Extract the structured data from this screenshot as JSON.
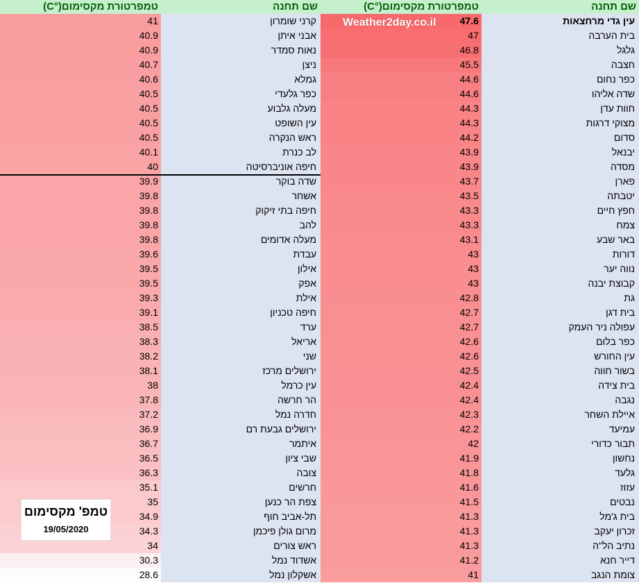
{
  "headers": {
    "right_station": "שם תחנה",
    "right_temp": "טמפרטורת מקסימום(°C)",
    "left_station": "שם תחנה",
    "left_temp": "טמפרטורת מקסימום(°C)"
  },
  "watermark": "Weather2day.co.il",
  "caption": {
    "title": "טמפ' מקסימום",
    "date": "19/05/2020"
  },
  "colors": {
    "header_bg": "#c6efce",
    "header_text": "#006100",
    "station_bg": "#dce3f1",
    "heat_high": "#f8696b",
    "heat_low": "#fcfcff"
  },
  "table_right": [
    {
      "station": "עין גדי מרחצאות",
      "temp": "47.6"
    },
    {
      "station": "בית הערבה",
      "temp": "47"
    },
    {
      "station": "גלגל",
      "temp": "46.8"
    },
    {
      "station": "חצבה",
      "temp": "45.5"
    },
    {
      "station": "כפר נחום",
      "temp": "44.6"
    },
    {
      "station": "שדה אליהו",
      "temp": "44.6"
    },
    {
      "station": "חוות עדן",
      "temp": "44.3"
    },
    {
      "station": "מצוקי דרגות",
      "temp": "44.3"
    },
    {
      "station": "סדום",
      "temp": "44.2"
    },
    {
      "station": "יבנאל",
      "temp": "43.9"
    },
    {
      "station": "מסדה",
      "temp": "43.9"
    },
    {
      "station": "פארן",
      "temp": "43.7"
    },
    {
      "station": "יטבתה",
      "temp": "43.5"
    },
    {
      "station": "חפץ חיים",
      "temp": "43.3"
    },
    {
      "station": "צמח",
      "temp": "43.3"
    },
    {
      "station": "באר שבע",
      "temp": "43.1"
    },
    {
      "station": "דורות",
      "temp": "43"
    },
    {
      "station": "נווה יער",
      "temp": "43"
    },
    {
      "station": "קבוצת יבנה",
      "temp": "43"
    },
    {
      "station": "גת",
      "temp": "42.8"
    },
    {
      "station": "בית דגן",
      "temp": "42.7"
    },
    {
      "station": "עפולה ניר העמק",
      "temp": "42.7"
    },
    {
      "station": "כפר בלום",
      "temp": "42.6"
    },
    {
      "station": "עין החורש",
      "temp": "42.6"
    },
    {
      "station": "בשור חווה",
      "temp": "42.5"
    },
    {
      "station": "בית צידה",
      "temp": "42.4"
    },
    {
      "station": "נגבה",
      "temp": "42.4"
    },
    {
      "station": "איילת השחר",
      "temp": "42.3"
    },
    {
      "station": "עמיעד",
      "temp": "42.2"
    },
    {
      "station": "תבור כדורי",
      "temp": "42"
    },
    {
      "station": "נחשון",
      "temp": "41.9"
    },
    {
      "station": "גלעד",
      "temp": "41.8"
    },
    {
      "station": "עזוז",
      "temp": "41.6"
    },
    {
      "station": "נבטים",
      "temp": "41.5"
    },
    {
      "station": "בית ג'מל",
      "temp": "41.3"
    },
    {
      "station": "זכרון יעקב",
      "temp": "41.3"
    },
    {
      "station": "נתיב הל\"ה",
      "temp": "41.3"
    },
    {
      "station": "דייר חנא",
      "temp": "41.2"
    },
    {
      "station": "צומת הנגב",
      "temp": "41"
    }
  ],
  "table_left": [
    {
      "station": "קרני שומרון",
      "temp": "41"
    },
    {
      "station": "אבני איתן",
      "temp": "40.9"
    },
    {
      "station": "נאות סמדר",
      "temp": "40.9"
    },
    {
      "station": "ניצן",
      "temp": "40.7"
    },
    {
      "station": "גמלא",
      "temp": "40.6"
    },
    {
      "station": "כפר גלעדי",
      "temp": "40.5"
    },
    {
      "station": "מעלה גלבוע",
      "temp": "40.5"
    },
    {
      "station": "עין השופט",
      "temp": "40.5"
    },
    {
      "station": "ראש הנקרה",
      "temp": "40.5"
    },
    {
      "station": "לב כנרת",
      "temp": "40.1"
    },
    {
      "station": "חיפה אוניברסיטה",
      "temp": "40"
    },
    {
      "station": "שדה בוקר",
      "temp": "39.9"
    },
    {
      "station": "אשחר",
      "temp": "39.8"
    },
    {
      "station": "חיפה בתי זיקוק",
      "temp": "39.8"
    },
    {
      "station": "להב",
      "temp": "39.8"
    },
    {
      "station": "מעלה אדומים",
      "temp": "39.8"
    },
    {
      "station": "עבדת",
      "temp": "39.6"
    },
    {
      "station": "אילון",
      "temp": "39.5"
    },
    {
      "station": "אפק",
      "temp": "39.5"
    },
    {
      "station": "אילת",
      "temp": "39.3"
    },
    {
      "station": "חיפה טכניון",
      "temp": "39.1"
    },
    {
      "station": "ערד",
      "temp": "38.5"
    },
    {
      "station": "אריאל",
      "temp": "38.3"
    },
    {
      "station": "שני",
      "temp": "38.2"
    },
    {
      "station": "ירושלים מרכז",
      "temp": "38.1"
    },
    {
      "station": "עין כרמל",
      "temp": "38"
    },
    {
      "station": "הר חרשה",
      "temp": "37.8"
    },
    {
      "station": "חדרה נמל",
      "temp": "37.2"
    },
    {
      "station": "ירושלים גבעת רם",
      "temp": "36.9"
    },
    {
      "station": "איתמר",
      "temp": "36.7"
    },
    {
      "station": "שבי ציון",
      "temp": "36.5"
    },
    {
      "station": "צובה",
      "temp": "36.3"
    },
    {
      "station": "חרשים",
      "temp": "35.1"
    },
    {
      "station": "צפת הר כנען",
      "temp": "35"
    },
    {
      "station": "תל-אביב חוף",
      "temp": "34.9"
    },
    {
      "station": "מרום גולן פיכמן",
      "temp": "34.3"
    },
    {
      "station": "ראש צורים",
      "temp": "34"
    },
    {
      "station": "אשדוד נמל",
      "temp": "30.3"
    },
    {
      "station": "אשקלון נמל",
      "temp": "28.6"
    }
  ]
}
